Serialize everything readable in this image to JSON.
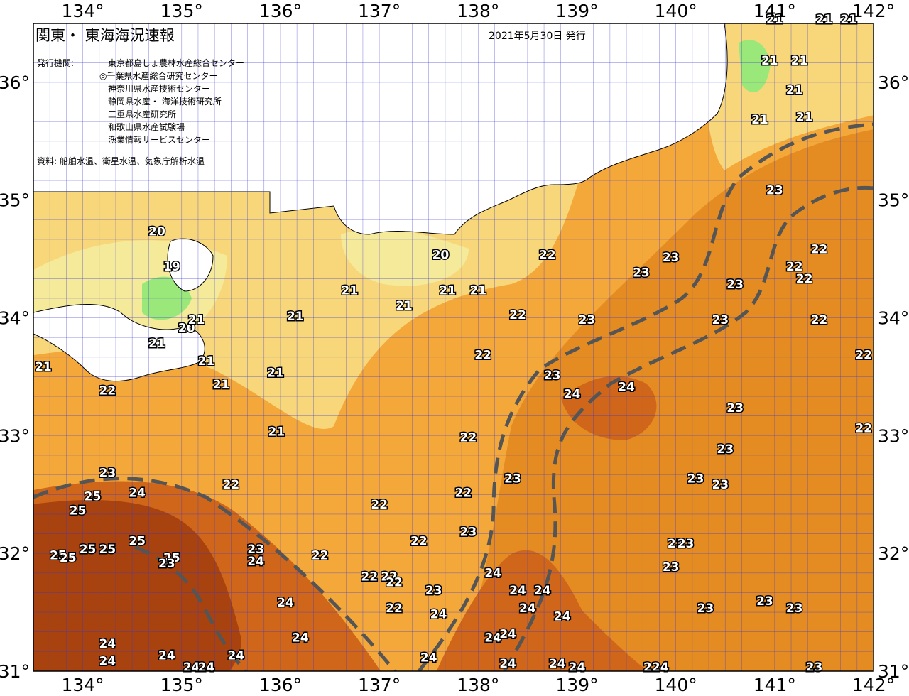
{
  "header": {
    "title": "関東・ 東海海況速報",
    "issue_date": "2021年5月30日 発行"
  },
  "info": {
    "agencies_label": "発行機関:",
    "agencies": [
      "東京都島しょ農林水産総合センター",
      "◎千葉県水産総合研究センター",
      "神奈川県水産技術センター",
      "静岡県水産・ 海洋技術研究所",
      "三重県水産研究所",
      "和歌山県水産試験場",
      "漁業情報サービスセンター"
    ],
    "source": "資料: 船舶水温、衛星水温、気象庁解析水温"
  },
  "axes": {
    "lon_labels": [
      "134°",
      "135°",
      "136°",
      "137°",
      "138°",
      "139°",
      "140°",
      "141°",
      "142°"
    ],
    "lat_labels": [
      "36°",
      "35°",
      "34°",
      "33°",
      "32°",
      "31°"
    ]
  },
  "colors": {
    "t19": "#6d9b2c",
    "t20": "#9be87a",
    "t20b": "#f5e99a",
    "t21": "#f8d77a",
    "t22": "#f4a83a",
    "t23": "#e48c22",
    "t24": "#d0661a",
    "t25": "#a8420e",
    "land": "#ffffff",
    "grid": "#3a3ad0",
    "front": "#555555"
  },
  "temperature_labels": [
    {
      "t": "21",
      "lon": 141.0,
      "lat": 36.5
    },
    {
      "t": "21",
      "lon": 141.5,
      "lat": 36.5
    },
    {
      "t": "21",
      "lon": 141.75,
      "lat": 36.5
    },
    {
      "t": "21",
      "lon": 140.95,
      "lat": 36.15
    },
    {
      "t": "21",
      "lon": 141.25,
      "lat": 36.15
    },
    {
      "t": "21",
      "lon": 141.2,
      "lat": 35.9
    },
    {
      "t": "21",
      "lon": 140.85,
      "lat": 35.65
    },
    {
      "t": "21",
      "lon": 141.3,
      "lat": 35.67
    },
    {
      "t": "23",
      "lon": 141.0,
      "lat": 35.05
    },
    {
      "t": "22",
      "lon": 141.45,
      "lat": 34.55
    },
    {
      "t": "22",
      "lon": 141.2,
      "lat": 34.4
    },
    {
      "t": "22",
      "lon": 141.3,
      "lat": 34.3
    },
    {
      "t": "22",
      "lon": 141.45,
      "lat": 33.95
    },
    {
      "t": "22",
      "lon": 141.9,
      "lat": 33.65
    },
    {
      "t": "22",
      "lon": 141.9,
      "lat": 33.03
    },
    {
      "t": "23",
      "lon": 139.95,
      "lat": 34.48
    },
    {
      "t": "23",
      "lon": 139.65,
      "lat": 34.35
    },
    {
      "t": "23",
      "lon": 140.6,
      "lat": 34.25
    },
    {
      "t": "23",
      "lon": 140.45,
      "lat": 33.95
    },
    {
      "t": "23",
      "lon": 140.6,
      "lat": 33.2
    },
    {
      "t": "23",
      "lon": 140.5,
      "lat": 32.85
    },
    {
      "t": "23",
      "lon": 140.2,
      "lat": 32.6
    },
    {
      "t": "23",
      "lon": 140.45,
      "lat": 32.55
    },
    {
      "t": "22",
      "lon": 138.7,
      "lat": 34.5
    },
    {
      "t": "22",
      "lon": 138.4,
      "lat": 33.99
    },
    {
      "t": "23",
      "lon": 139.1,
      "lat": 33.95
    },
    {
      "t": "22",
      "lon": 138.05,
      "lat": 33.65
    },
    {
      "t": "23",
      "lon": 138.75,
      "lat": 33.48
    },
    {
      "t": "24",
      "lon": 138.95,
      "lat": 33.32
    },
    {
      "t": "24",
      "lon": 139.5,
      "lat": 33.38
    },
    {
      "t": "22",
      "lon": 137.9,
      "lat": 32.95
    },
    {
      "t": "23",
      "lon": 138.35,
      "lat": 32.6
    },
    {
      "t": "22",
      "lon": 137.85,
      "lat": 32.48
    },
    {
      "t": "22",
      "lon": 137.0,
      "lat": 32.38
    },
    {
      "t": "23",
      "lon": 137.9,
      "lat": 32.15
    },
    {
      "t": "22",
      "lon": 137.4,
      "lat": 32.07
    },
    {
      "t": "23",
      "lon": 140.0,
      "lat": 32.05
    },
    {
      "t": "23",
      "lon": 140.1,
      "lat": 32.05
    },
    {
      "t": "23",
      "lon": 139.95,
      "lat": 31.85
    },
    {
      "t": "23",
      "lon": 140.3,
      "lat": 31.5
    },
    {
      "t": "23",
      "lon": 140.9,
      "lat": 31.56
    },
    {
      "t": "23",
      "lon": 141.2,
      "lat": 31.5
    },
    {
      "t": "23",
      "lon": 141.4,
      "lat": 31.0
    },
    {
      "t": "24",
      "lon": 138.15,
      "lat": 31.8
    },
    {
      "t": "24",
      "lon": 138.4,
      "lat": 31.65
    },
    {
      "t": "24",
      "lon": 138.65,
      "lat": 31.65
    },
    {
      "t": "24",
      "lon": 138.5,
      "lat": 31.5
    },
    {
      "t": "24",
      "lon": 137.6,
      "lat": 31.45
    },
    {
      "t": "24",
      "lon": 138.85,
      "lat": 31.43
    },
    {
      "t": "24",
      "lon": 138.15,
      "lat": 31.25
    },
    {
      "t": "24",
      "lon": 138.3,
      "lat": 31.28
    },
    {
      "t": "24",
      "lon": 137.5,
      "lat": 31.08
    },
    {
      "t": "24",
      "lon": 138.3,
      "lat": 31.03
    },
    {
      "t": "24",
      "lon": 138.8,
      "lat": 31.03
    },
    {
      "t": "24",
      "lon": 139.0,
      "lat": 31.0
    },
    {
      "t": "224",
      "lon": 139.8,
      "lat": 31.0
    },
    {
      "t": "23",
      "lon": 137.55,
      "lat": 31.65
    },
    {
      "t": "22",
      "lon": 136.9,
      "lat": 31.77
    },
    {
      "t": "22",
      "lon": 137.1,
      "lat": 31.77
    },
    {
      "t": "22",
      "lon": 137.15,
      "lat": 31.72
    },
    {
      "t": "22",
      "lon": 137.15,
      "lat": 31.5
    },
    {
      "t": "22",
      "lon": 136.4,
      "lat": 31.95
    },
    {
      "t": "21",
      "lon": 136.7,
      "lat": 34.2
    },
    {
      "t": "21",
      "lon": 137.25,
      "lat": 34.07
    },
    {
      "t": "20",
      "lon": 137.62,
      "lat": 34.5
    },
    {
      "t": "21",
      "lon": 137.69,
      "lat": 34.2
    },
    {
      "t": "21",
      "lon": 138.0,
      "lat": 34.2
    },
    {
      "t": "21",
      "lon": 136.15,
      "lat": 33.98
    },
    {
      "t": "21",
      "lon": 135.95,
      "lat": 33.5
    },
    {
      "t": "21",
      "lon": 135.25,
      "lat": 33.6
    },
    {
      "t": "21",
      "lon": 135.4,
      "lat": 33.4
    },
    {
      "t": "21",
      "lon": 134.75,
      "lat": 33.75
    },
    {
      "t": "21",
      "lon": 135.96,
      "lat": 33.0
    },
    {
      "t": "21",
      "lon": 133.6,
      "lat": 33.55
    },
    {
      "t": "22",
      "lon": 134.25,
      "lat": 33.35
    },
    {
      "t": "22",
      "lon": 135.5,
      "lat": 32.55
    },
    {
      "t": "20",
      "lon": 134.75,
      "lat": 34.7
    },
    {
      "t": "19",
      "lon": 134.9,
      "lat": 34.4
    },
    {
      "t": "20",
      "lon": 135.05,
      "lat": 33.88
    },
    {
      "t": "21",
      "lon": 135.15,
      "lat": 33.95
    },
    {
      "t": "23",
      "lon": 134.25,
      "lat": 32.65
    },
    {
      "t": "24",
      "lon": 134.55,
      "lat": 32.48
    },
    {
      "t": "25",
      "lon": 134.1,
      "lat": 32.45
    },
    {
      "t": "25",
      "lon": 133.95,
      "lat": 32.33
    },
    {
      "t": "25",
      "lon": 134.55,
      "lat": 32.07
    },
    {
      "t": "25",
      "lon": 134.05,
      "lat": 32.0
    },
    {
      "t": "25",
      "lon": 134.25,
      "lat": 32.0
    },
    {
      "t": "25",
      "lon": 133.75,
      "lat": 31.95
    },
    {
      "t": "25",
      "lon": 133.85,
      "lat": 31.93
    },
    {
      "t": "25",
      "lon": 134.9,
      "lat": 31.93
    },
    {
      "t": "23",
      "lon": 134.85,
      "lat": 31.88
    },
    {
      "t": "23",
      "lon": 135.75,
      "lat": 32.0
    },
    {
      "t": "24",
      "lon": 135.75,
      "lat": 31.9
    },
    {
      "t": "24",
      "lon": 136.05,
      "lat": 31.55
    },
    {
      "t": "24",
      "lon": 136.2,
      "lat": 31.25
    },
    {
      "t": "24",
      "lon": 134.25,
      "lat": 31.2
    },
    {
      "t": "24",
      "lon": 134.25,
      "lat": 31.05
    },
    {
      "t": "24",
      "lon": 134.85,
      "lat": 31.1
    },
    {
      "t": "24",
      "lon": 135.1,
      "lat": 31.0
    },
    {
      "t": "24",
      "lon": 135.25,
      "lat": 31.0
    },
    {
      "t": "24",
      "lon": 135.55,
      "lat": 31.1
    }
  ]
}
